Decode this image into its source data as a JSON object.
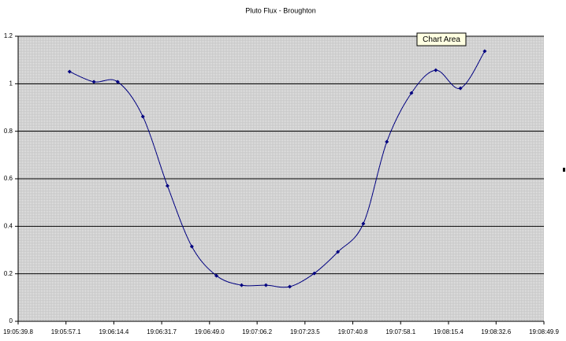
{
  "chart_data": {
    "type": "line",
    "title": "Pluto Flux - Broughton",
    "tooltip": "Chart Area",
    "x": [
      "19:05:58.4",
      "19:06:07.2",
      "19:06:15.8",
      "19:06:24.9",
      "19:06:33.8",
      "19:06:42.6",
      "19:06:51.5",
      "19:07:00.6",
      "19:07:09.4",
      "19:07:18.0",
      "19:07:26.9",
      "19:07:35.4",
      "19:07:44.6",
      "19:07:53.1",
      "19:08:02.0",
      "19:08:10.8",
      "19:08:19.7",
      "19:08:28.5"
    ],
    "series": [
      {
        "name": "Flux",
        "color": "#000080",
        "values": [
          1.051,
          1.008,
          1.008,
          0.862,
          0.57,
          0.315,
          0.192,
          0.152,
          0.152,
          0.146,
          0.202,
          0.292,
          0.411,
          0.756,
          0.961,
          1.057,
          0.981,
          1.137
        ]
      }
    ],
    "xlim": [
      "19:05:39.8",
      "19:08:49.9"
    ],
    "xticks": [
      "19:05:39.8",
      "19:05:57.1",
      "19:06:14.4",
      "19:06:31.7",
      "19:06:49.0",
      "19:07:06.2",
      "19:07:23.5",
      "19:07:40.8",
      "19:07:58.1",
      "19:08:15.4",
      "19:08:32.6",
      "19:08:49.9"
    ],
    "ylim": [
      0,
      1.2
    ],
    "yticks": [
      0,
      0.2,
      0.4,
      0.6,
      0.8,
      1,
      1.2
    ],
    "grid": true,
    "smooth": true
  }
}
